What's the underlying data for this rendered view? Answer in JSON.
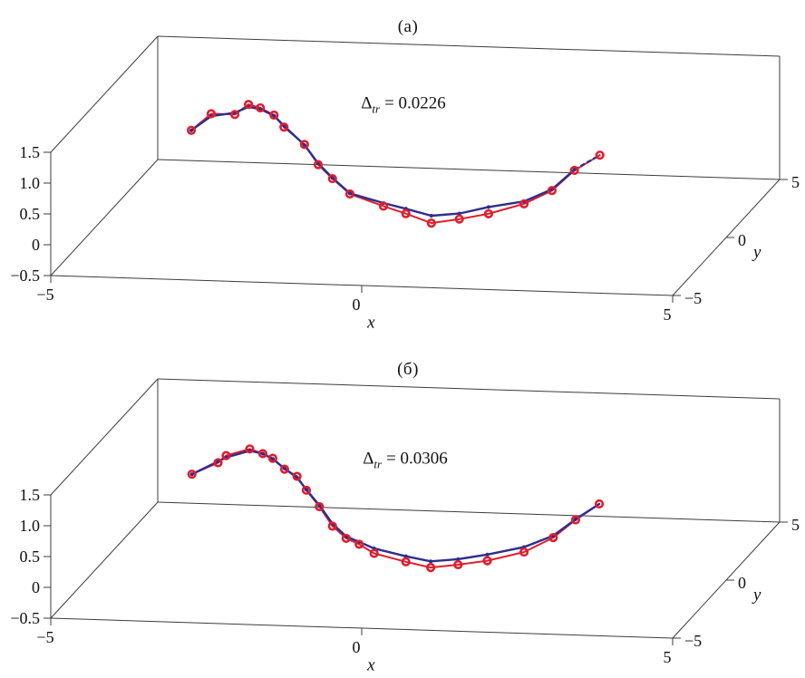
{
  "figure": {
    "background": "#ffffff",
    "colors": {
      "data_red": "#df1e2f",
      "model_blue": "#2c2e8e",
      "axis_line": "#3c3c3c",
      "label_text": "#111111"
    },
    "panels": [
      {
        "label": "(a)",
        "annotation": {
          "symbol": "Δ",
          "sub": "tr",
          "rest": "= 0.0226"
        }
      },
      {
        "label": "(б)",
        "annotation": {
          "symbol": "Δ",
          "sub": "tr",
          "rest": "= 0.0306"
        }
      }
    ]
  },
  "chart_data": [
    {
      "type": "line",
      "projection": "3d",
      "title": "(a)",
      "annotation": "Δtr = 0.0226",
      "xlabel": "x",
      "ylabel": "y",
      "zlabel": "",
      "xlim": [
        -5,
        5
      ],
      "ylim": [
        -5,
        5
      ],
      "zlim": [
        -0.5,
        1.5
      ],
      "grid": false,
      "legend": null,
      "xticks": {
        "values": [
          -5,
          0,
          5
        ],
        "labels": [
          "−5",
          "0",
          "5"
        ]
      },
      "yticks": {
        "values": [
          5,
          0,
          -5
        ],
        "labels": [
          "5",
          "0",
          "−5"
        ]
      },
      "zticks": {
        "values": [
          1.5,
          1.0,
          0.5,
          0,
          -0.5
        ],
        "labels": [
          "1.5",
          "1.0",
          "0.5",
          "0",
          "−0.5"
        ]
      },
      "series": [
        {
          "name": "data points (red open circles)",
          "type": "scatter-line",
          "color": "#df1e2f",
          "y_plane": 0,
          "tail_dashed": false,
          "points_xz": [
            [
              -3.6,
              0.96
            ],
            [
              -3.28,
              1.24
            ],
            [
              -2.9,
              1.24
            ],
            [
              -2.68,
              1.41
            ],
            [
              -2.49,
              1.36
            ],
            [
              -2.27,
              1.25
            ],
            [
              -2.11,
              1.06
            ],
            [
              -1.78,
              0.79
            ],
            [
              -1.56,
              0.47
            ],
            [
              -1.33,
              0.25
            ],
            [
              -1.05,
              0.01
            ],
            [
              -0.51,
              -0.17
            ],
            [
              -0.15,
              -0.28
            ],
            [
              0.26,
              -0.42
            ],
            [
              0.71,
              -0.34
            ],
            [
              1.18,
              -0.24
            ],
            [
              1.75,
              -0.06
            ],
            [
              2.2,
              0.17
            ],
            [
              2.56,
              0.51
            ],
            [
              2.97,
              0.77
            ]
          ]
        },
        {
          "name": "model curve (blue line with dots)",
          "type": "line-dots",
          "color": "#2c2e8e",
          "y_plane": 0,
          "tail_dashed": true,
          "points_xz": [
            [
              -3.6,
              0.96
            ],
            [
              -3.28,
              1.2
            ],
            [
              -2.9,
              1.27
            ],
            [
              -2.68,
              1.37
            ],
            [
              -2.49,
              1.34
            ],
            [
              -2.27,
              1.24
            ],
            [
              -2.11,
              1.08
            ],
            [
              -1.78,
              0.78
            ],
            [
              -1.56,
              0.49
            ],
            [
              -1.33,
              0.26
            ],
            [
              -1.05,
              0.02
            ],
            [
              -0.51,
              -0.12
            ],
            [
              -0.15,
              -0.2
            ],
            [
              0.26,
              -0.3
            ],
            [
              0.71,
              -0.25
            ],
            [
              1.18,
              -0.13
            ],
            [
              1.75,
              -0.02
            ],
            [
              2.2,
              0.19
            ],
            [
              2.56,
              0.52
            ],
            [
              2.97,
              0.77
            ]
          ]
        }
      ]
    },
    {
      "type": "line",
      "projection": "3d",
      "title": "(б)",
      "annotation": "Δtr = 0.0306",
      "xlabel": "x",
      "ylabel": "y",
      "zlabel": "",
      "xlim": [
        -5,
        5
      ],
      "ylim": [
        -5,
        5
      ],
      "zlim": [
        -0.5,
        1.5
      ],
      "grid": false,
      "legend": null,
      "xticks": {
        "values": [
          -5,
          0,
          5
        ],
        "labels": [
          "−5",
          "0",
          "5"
        ]
      },
      "yticks": {
        "values": [
          5,
          0,
          -5
        ],
        "labels": [
          "5",
          "0",
          "−5"
        ]
      },
      "zticks": {
        "values": [
          1.5,
          1.0,
          0.5,
          0,
          -0.5
        ],
        "labels": [
          "1.5",
          "1.0",
          "0.5",
          "0",
          "−0.5"
        ]
      },
      "series": [
        {
          "name": "data points (red open circles)",
          "type": "scatter-line",
          "color": "#df1e2f",
          "y_plane": 0,
          "tail_dashed": false,
          "points_xz": [
            [
              -3.59,
              0.94
            ],
            [
              -3.17,
              1.14
            ],
            [
              -3.04,
              1.26
            ],
            [
              -2.66,
              1.38
            ],
            [
              -2.45,
              1.31
            ],
            [
              -2.29,
              1.24
            ],
            [
              -2.1,
              1.07
            ],
            [
              -1.9,
              0.96
            ],
            [
              -1.75,
              0.74
            ],
            [
              -1.54,
              0.48
            ],
            [
              -1.33,
              0.17
            ],
            [
              -1.11,
              -0.02
            ],
            [
              -0.9,
              -0.11
            ],
            [
              -0.66,
              -0.25
            ],
            [
              -0.15,
              -0.37
            ],
            [
              0.25,
              -0.45
            ],
            [
              0.69,
              -0.39
            ],
            [
              1.16,
              -0.31
            ],
            [
              1.75,
              -0.15
            ],
            [
              2.22,
              0.1
            ],
            [
              2.58,
              0.4
            ],
            [
              2.96,
              0.67
            ]
          ]
        },
        {
          "name": "model curve (blue line with dots)",
          "type": "line-dots",
          "color": "#2c2e8e",
          "y_plane": 0,
          "tail_dashed": false,
          "points_xz": [
            [
              -3.59,
              0.94
            ],
            [
              -3.17,
              1.16
            ],
            [
              -3.04,
              1.23
            ],
            [
              -2.66,
              1.35
            ],
            [
              -2.45,
              1.31
            ],
            [
              -2.29,
              1.23
            ],
            [
              -2.1,
              1.08
            ],
            [
              -1.9,
              0.94
            ],
            [
              -1.75,
              0.75
            ],
            [
              -1.54,
              0.5
            ],
            [
              -1.33,
              0.21
            ],
            [
              -1.11,
              0.01
            ],
            [
              -0.9,
              -0.07
            ],
            [
              -0.66,
              -0.17
            ],
            [
              -0.15,
              -0.28
            ],
            [
              0.25,
              -0.35
            ],
            [
              0.69,
              -0.3
            ],
            [
              1.16,
              -0.21
            ],
            [
              1.75,
              -0.07
            ],
            [
              2.22,
              0.13
            ],
            [
              2.58,
              0.41
            ],
            [
              2.96,
              0.67
            ]
          ]
        }
      ]
    }
  ]
}
